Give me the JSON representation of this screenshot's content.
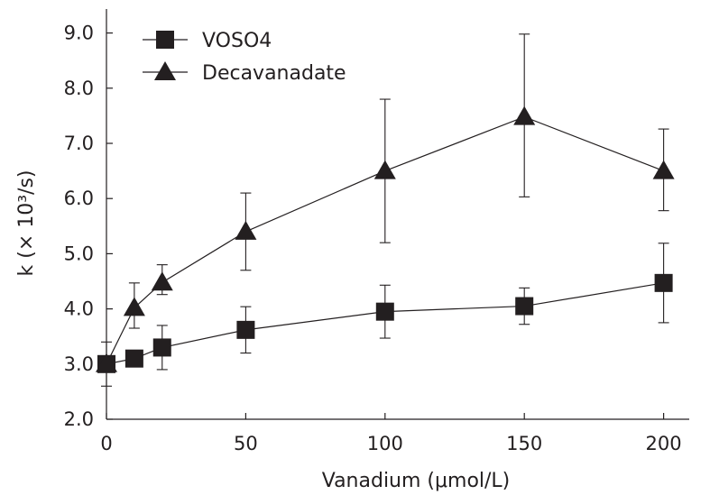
{
  "chart_data": {
    "type": "line",
    "xlabel": "Vanadium (μmol/L)",
    "ylabel": "k (× 10³/s)",
    "xlim": [
      0,
      210
    ],
    "ylim": [
      2.0,
      9.4
    ],
    "x_ticks": [
      0,
      50,
      100,
      150,
      200
    ],
    "x_tick_labels": [
      "0",
      "50",
      "100",
      "150",
      "200"
    ],
    "y_ticks": [
      2.0,
      3.0,
      4.0,
      5.0,
      6.0,
      7.0,
      8.0,
      9.0
    ],
    "y_tick_labels": [
      "2.0",
      "3.0",
      "4.0",
      "5.0",
      "6.0",
      "7.0",
      "8.0",
      "9.0"
    ],
    "grid": false,
    "legend_position": "top-left",
    "series": [
      {
        "name": "VOSO4",
        "marker": "square",
        "x": [
          0,
          10,
          20,
          50,
          100,
          150,
          200
        ],
        "y": [
          3.0,
          3.1,
          3.3,
          3.62,
          3.95,
          4.05,
          4.47
        ],
        "err_low": [
          0.4,
          0.05,
          0.4,
          0.42,
          0.48,
          0.33,
          0.72
        ],
        "err_high": [
          0.4,
          0.05,
          0.4,
          0.42,
          0.48,
          0.33,
          0.72
        ]
      },
      {
        "name": "Decavanadate",
        "marker": "triangle",
        "x": [
          0,
          10,
          20,
          50,
          100,
          150,
          200
        ],
        "y": [
          3.0,
          4.02,
          4.48,
          5.4,
          6.5,
          7.48,
          6.5
        ],
        "err_low": [
          0.0,
          0.37,
          0.22,
          0.7,
          1.3,
          1.45,
          0.72
        ],
        "err_high": [
          0.0,
          0.45,
          0.32,
          0.7,
          1.3,
          1.5,
          0.76
        ]
      }
    ],
    "colors": {
      "ink": "#231f20"
    }
  }
}
